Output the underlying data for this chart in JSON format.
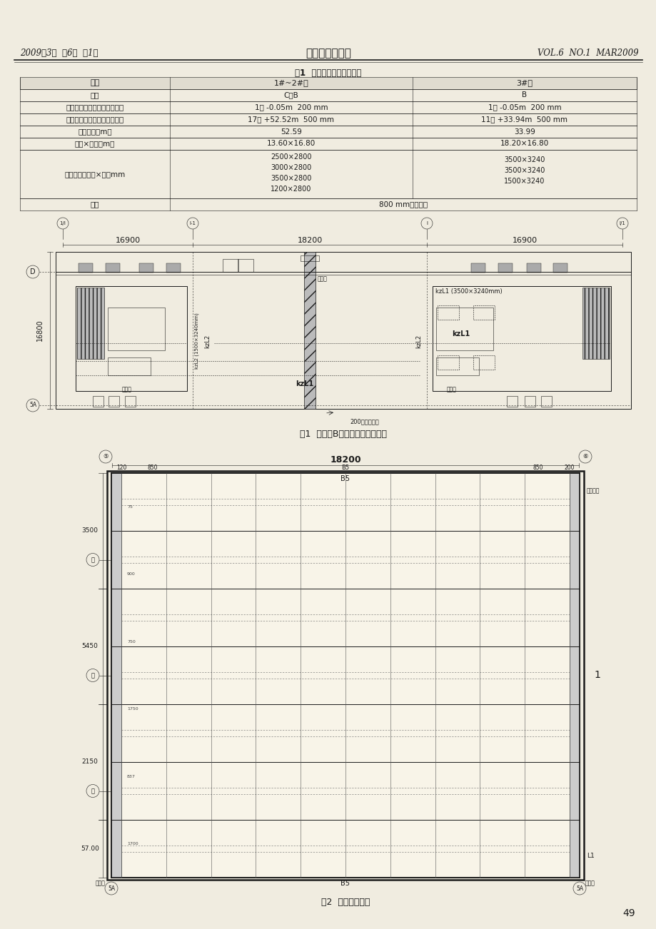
{
  "page_bg": "#f0ece0",
  "white": "#ffffff",
  "black": "#1a1a1a",
  "gray_light": "#d8d4c8",
  "gray_mid": "#999999",
  "gray_dark": "#555555",
  "header_left": "2009年3月  第6卷  第1期",
  "header_center": "深圳土木与建筑",
  "header_right": "VOL.6  NO.1  MAR2009",
  "table_title": "表1  转换层梁板结构特征表",
  "th0": "栋号",
  "th1": "1#~2#楼",
  "th2": "3#楼",
  "td": [
    [
      "区段",
      "C、B",
      "B"
    ],
    [
      "切块连体底部楼层标高、板厚",
      "1层 -0.05m  200 mm",
      "1层 -0.05m  200 mm"
    ],
    [
      "切块连体顶部楼层标高、板厚",
      "17层 +52.52m  500 mm",
      "11层 +33.94m  500 mm"
    ],
    [
      "切块高度（m）",
      "52.59",
      "33.99"
    ],
    [
      "跨度×宽度（m）",
      "13.60×16.80",
      "18.20×16.80"
    ],
    [
      "转换梁截面（宽×高）mm",
      "2500×2800\n3000×2800\n3500×2800\n1200×2800",
      "3500×3240\n3500×3240\n1500×3240"
    ],
    [
      "备注",
      "800 mm宽后浇带",
      ""
    ]
  ],
  "fig1_caption": "图1  三号楼B区十一层结构平面图",
  "fig2_caption": "图2  上弦梁布置图",
  "page_number": "49",
  "f1_dim1": "16900",
  "f1_dim2": "18200",
  "f1_dim3": "16900",
  "f1_height": "16800",
  "f2_dim": "18200",
  "f2_label1": "B5",
  "f2_label2": "B5",
  "f2_label3": "L1",
  "f2_right_label": "1",
  "f2_note": "普楞钢柱",
  "f2_side_dims": [
    "3500",
    "5450",
    "2150",
    "57.00"
  ],
  "f2_top_dims": [
    "120",
    "850",
    "B5",
    "850",
    "200"
  ],
  "f2_bot_dims": [
    "重力墙",
    "B5",
    "L1",
    "重力墙"
  ]
}
